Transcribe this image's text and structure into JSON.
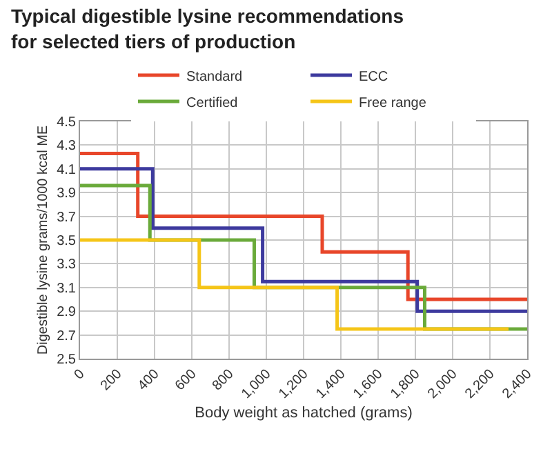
{
  "chart_data": {
    "type": "step",
    "title": "Typical digestible lysine recommendations for selected tiers of production",
    "xlabel": "Body weight as hatched (grams)",
    "ylabel": "Digestible lysine grams/1000 kcal ME",
    "series": [
      {
        "name": "Standard",
        "color": "#e8462a",
        "x": [
          0,
          310,
          1300,
          1760,
          2400
        ],
        "values": [
          4.23,
          3.7,
          3.4,
          3.0,
          3.0
        ]
      },
      {
        "name": "ECC",
        "color": "#3d3a9e",
        "x": [
          0,
          390,
          980,
          1810,
          2400
        ],
        "values": [
          4.1,
          3.6,
          3.15,
          2.9,
          2.9
        ]
      },
      {
        "name": "Certified",
        "color": "#6aaa3a",
        "x": [
          0,
          375,
          935,
          1850,
          2400
        ],
        "values": [
          3.96,
          3.5,
          3.1,
          2.75,
          2.75
        ]
      },
      {
        "name": "Free range",
        "color": "#f5c518",
        "x": [
          0,
          640,
          1380,
          2300
        ],
        "values": [
          3.5,
          3.1,
          2.75,
          2.75
        ]
      }
    ],
    "xlim": [
      0,
      2400
    ],
    "xticks": [
      0,
      200,
      400,
      600,
      800,
      {
        "value": 1000,
        "label": "1,000"
      },
      {
        "value": 1200,
        "label": "1,200"
      },
      {
        "value": 1400,
        "label": "1,400"
      },
      {
        "value": 1600,
        "label": "1,600"
      },
      {
        "value": 1800,
        "label": "1,800"
      },
      {
        "value": 2000,
        "label": "2,000"
      },
      {
        "value": 2200,
        "label": "2,200"
      },
      {
        "value": 2400,
        "label": "2,400"
      }
    ],
    "ylim": [
      2.5,
      4.5
    ],
    "yticks": [
      2.5,
      2.7,
      2.9,
      3.1,
      3.3,
      3.5,
      3.7,
      3.9,
      4.1,
      4.3,
      4.5
    ],
    "grid": true,
    "legend": "top",
    "line_style": "solid",
    "marker": "none"
  }
}
